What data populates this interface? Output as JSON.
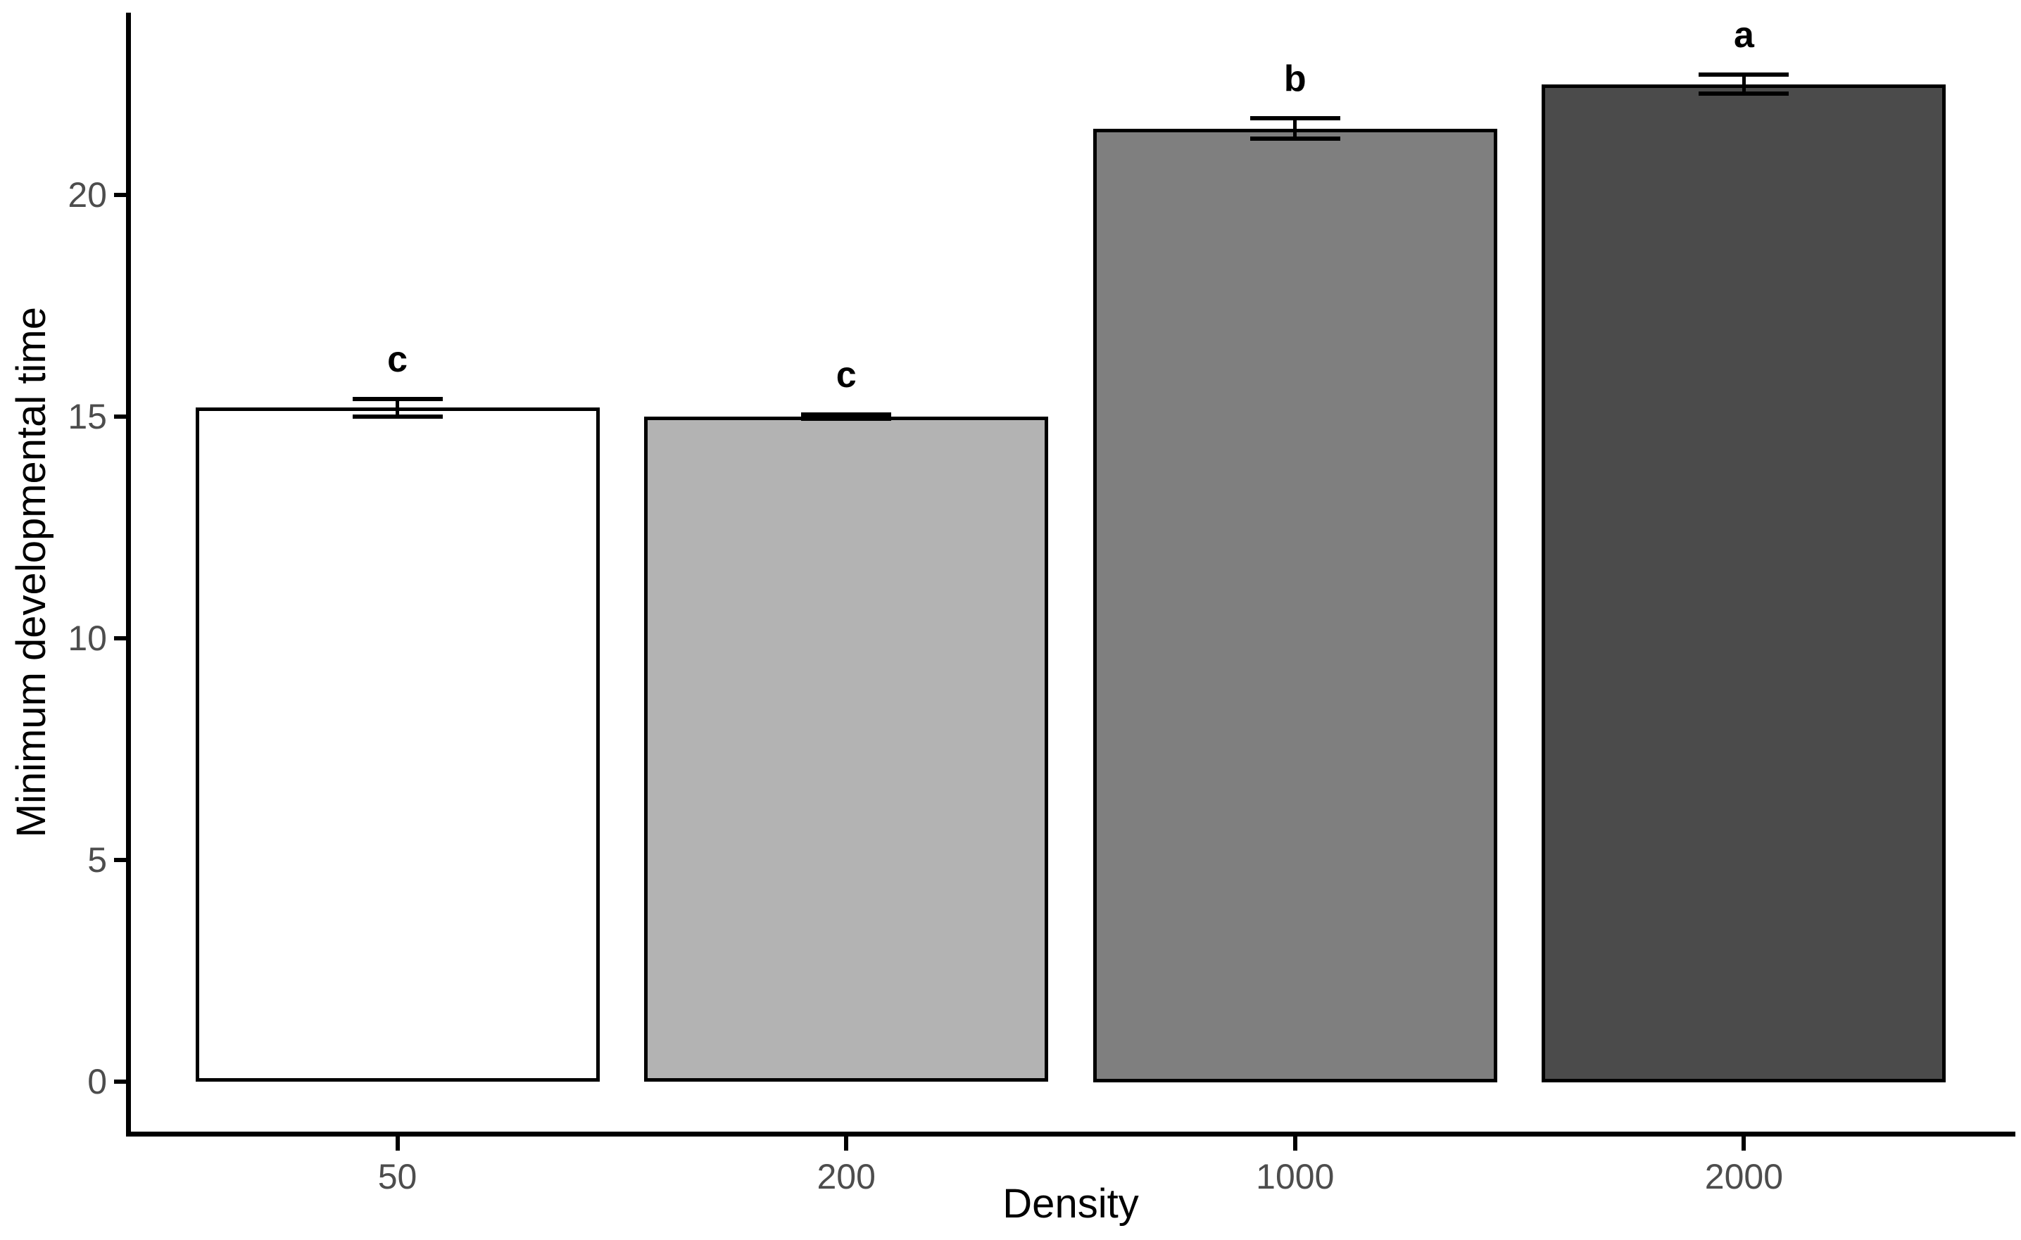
{
  "figure": {
    "background_color": "#FFFFFF"
  },
  "chart_data": {
    "type": "bar",
    "title": "",
    "xlabel": "Density",
    "ylabel": "Minimum developmental time",
    "categories": [
      "50",
      "200",
      "1000",
      "2000"
    ],
    "values": [
      15.2,
      15.0,
      21.5,
      22.5
    ],
    "error_bars": [
      0.2,
      0.05,
      0.23,
      0.22
    ],
    "sig_letters": [
      "c",
      "c",
      "b",
      "a"
    ],
    "bar_fill_colors": [
      "#FFFFFF",
      "#B3B3B3",
      "#7F7F7F",
      "#4B4B4B"
    ],
    "bar_border_color": "#000000",
    "error_bar_color": "#000000",
    "y_ticks": [
      0,
      5,
      10,
      15,
      20
    ],
    "ylim": [
      0,
      24
    ],
    "grid": "off",
    "legend": "none",
    "axis_color": "#000000",
    "tick_label_color": "#4D4D4D"
  }
}
